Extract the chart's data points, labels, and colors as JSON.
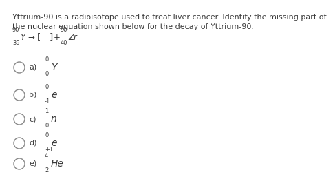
{
  "title_line1": "Yttrium-90 is a radioisotope used to treat liver cancer. Identify the missing part of",
  "title_line2": "the nuclear equation shown below for the decay of Yttrium-90.",
  "equation": {
    "Y_super": "90",
    "Y_sub": "39",
    "Zr_super": "90",
    "Zr_sub": "40"
  },
  "options": [
    {
      "label": "a)",
      "main": "Y",
      "super": "0",
      "sub": "0"
    },
    {
      "label": "b)",
      "main": "e",
      "super": "0",
      "sub": "-1"
    },
    {
      "label": "c)",
      "main": "n",
      "super": "1",
      "sub": "0"
    },
    {
      "label": "d)",
      "main": "e",
      "super": "0",
      "sub": "+1"
    },
    {
      "label": "e)",
      "main": "He",
      "super": "4",
      "sub": "2"
    }
  ],
  "text_color": "#3a3a3a",
  "bg_color": "#ffffff",
  "circle_color": "#888888",
  "fontsize_title": 8.0,
  "fontsize_eq": 8.5,
  "fontsize_small": 6.0,
  "fontsize_option_label": 8.0,
  "fontsize_option_main": 10.0
}
